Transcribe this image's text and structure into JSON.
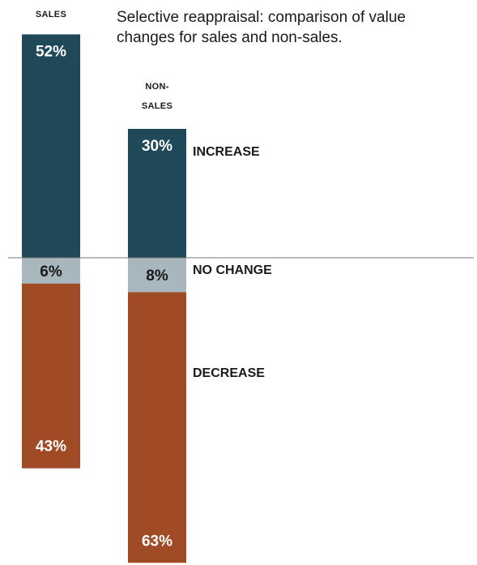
{
  "chart_data": {
    "type": "bar",
    "title": "Selective reappraisal: comparison of value changes for sales and non-sales.",
    "title_lines": [
      "Selective reappraisal: comparison of value",
      "changes for sales and non-sales."
    ],
    "categories": [
      "SALES",
      "NON-SALES"
    ],
    "category_lines": [
      [
        "SALES"
      ],
      [
        "NON-",
        "SALES"
      ]
    ],
    "series": [
      {
        "name": "INCREASE",
        "values": [
          52,
          30
        ],
        "labels": [
          "52%",
          "30%"
        ],
        "color": "#1f4858",
        "text_color": "#ffffff"
      },
      {
        "name": "NO CHANGE",
        "values": [
          6,
          8
        ],
        "labels": [
          "6%",
          "8%"
        ],
        "color": "#a8b6bd",
        "text_color": "#1a1a1a"
      },
      {
        "name": "DECREASE",
        "values": [
          43,
          63
        ],
        "labels": [
          "43%",
          "63%"
        ],
        "color": "#a04b25",
        "text_color": "#ffffff"
      }
    ],
    "baseline_color": "#777777"
  }
}
